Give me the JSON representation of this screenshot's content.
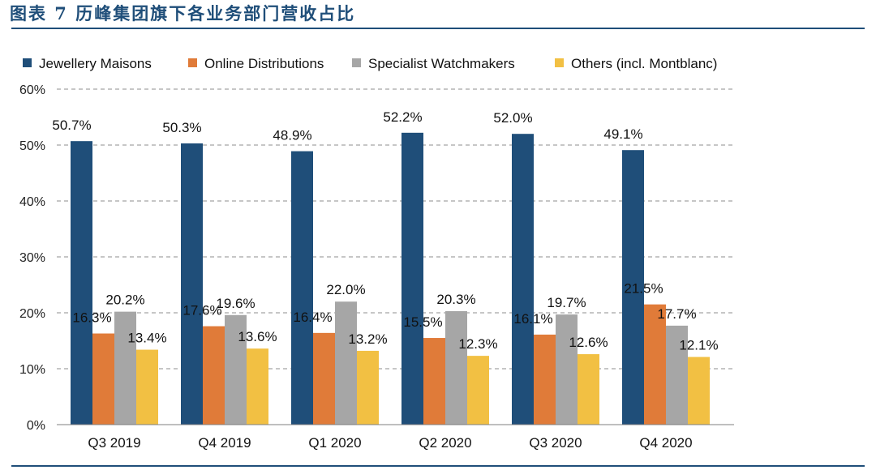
{
  "figure": {
    "title": "图表 7  历峰集团旗下各业务部门营收占比"
  },
  "chart_data": {
    "type": "bar",
    "categories": [
      "Q3 2019",
      "Q4 2019",
      "Q1 2020",
      "Q2 2020",
      "Q3 2020",
      "Q4 2020"
    ],
    "series": [
      {
        "name": "Jewellery Maisons",
        "color": "#1f4e79",
        "values": [
          50.7,
          50.3,
          48.9,
          52.2,
          52.0,
          49.1
        ]
      },
      {
        "name": "Online Distributions",
        "color": "#e07b39",
        "values": [
          16.3,
          17.6,
          16.4,
          15.5,
          16.1,
          21.5
        ]
      },
      {
        "name": "Specialist Watchmakers",
        "color": "#a6a6a6",
        "values": [
          20.2,
          19.6,
          22.0,
          20.3,
          19.7,
          17.7
        ]
      },
      {
        "name": "Others (incl. Montblanc)",
        "color": "#f2c043",
        "values": [
          13.4,
          13.6,
          13.2,
          12.3,
          12.6,
          12.1
        ]
      }
    ],
    "ylim": [
      0,
      60
    ],
    "yticks": [
      "0%",
      "10%",
      "20%",
      "30%",
      "40%",
      "50%",
      "60%"
    ],
    "value_suffix": "%",
    "grid": "horizontal-dashed",
    "legend_position": "top"
  }
}
